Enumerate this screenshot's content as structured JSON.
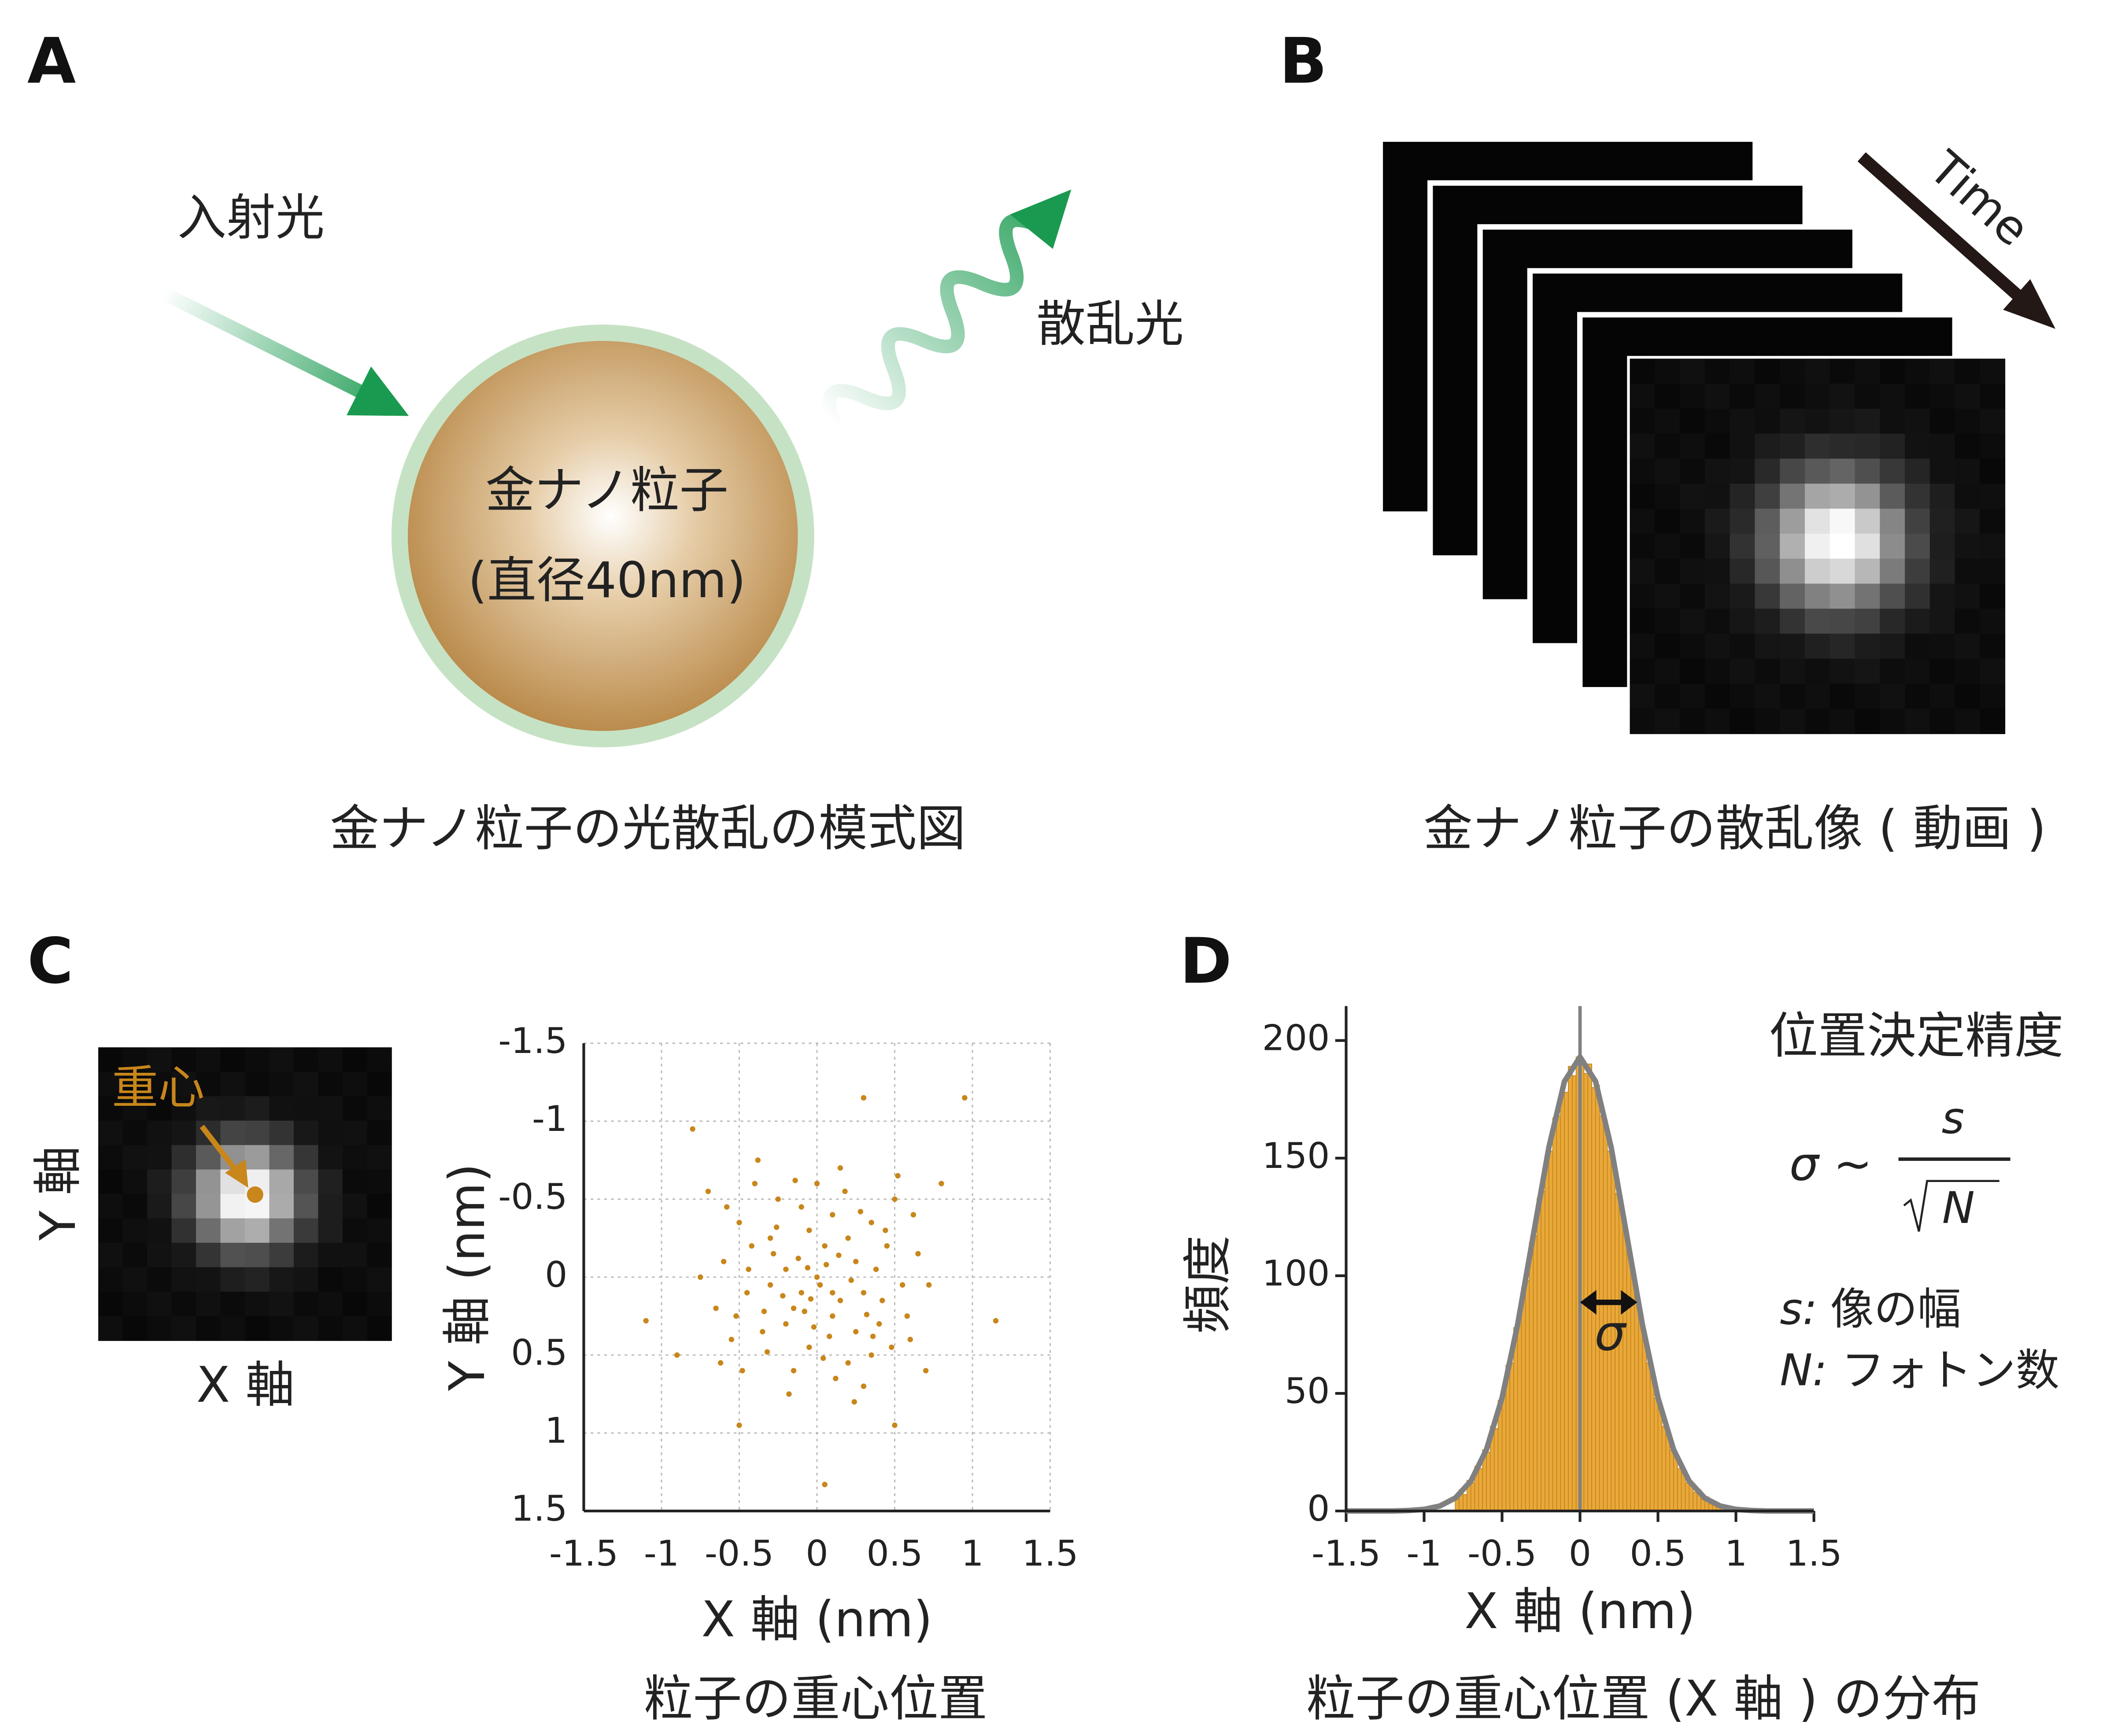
{
  "panels": {
    "A": {
      "label": "A",
      "incident": "入射光",
      "scattered": "散乱光",
      "particle": "金ナノ粒子",
      "diameter": "(直径40nm)",
      "caption": "金ナノ粒子の光散乱の模式図"
    },
    "B": {
      "label": "B",
      "time": "Time",
      "caption": "金ナノ粒子の散乱像 ( 動画 )"
    },
    "C": {
      "label": "C",
      "centroid": "重心",
      "y_axis": "Y 軸",
      "x_axis": "X 軸",
      "caption": "粒子の重心位置"
    },
    "D": {
      "label": "D",
      "precision": "位置決定精度",
      "formula_lhs": "σ ~",
      "formula_num": "s",
      "formula_den": "N",
      "s_key": "s:",
      "s_desc": "像の幅",
      "n_key": "N:",
      "n_desc": "フォトン数",
      "caption": "粒子の重心位置 (X 軸 ) の分布"
    }
  },
  "chart_data": [
    {
      "type": "scatter",
      "x_label": "X 軸 (nm)",
      "y_label": "Y 軸 (nm)",
      "color": "#c8861b",
      "grid": true,
      "xlim": [
        -1.5,
        1.5
      ],
      "ylim": [
        1.5,
        -1.5
      ],
      "xticks": [
        -1.5,
        -1,
        -0.5,
        0,
        0.5,
        1,
        1.5
      ],
      "yticks": [
        -1.5,
        -1,
        -0.5,
        0,
        0.5,
        1,
        1.5
      ],
      "x": [
        -0.8,
        0.3,
        0.95,
        1.15,
        -1.1,
        0.05,
        -0.5,
        0.5,
        -0.9,
        0.8,
        -0.7,
        0.7,
        0.02,
        -0.15,
        0.25,
        -0.3,
        0.4,
        0.1,
        -0.45,
        0.35,
        -0.05,
        0.55,
        -0.6,
        0.2,
        -0.25,
        0.05,
        -0.1,
        0.15,
        -0.2,
        0.3,
        -0.35,
        0.45,
        0.0,
        -0.5,
        0.6,
        -0.15,
        0.25,
        -0.4,
        0.1,
        -0.3,
        0.5,
        -0.05,
        0.2,
        -0.55,
        0.65,
        -0.2,
        0.35,
        -0.1,
        0.08,
        -0.65,
        0.42,
        -0.28,
        0.18,
        -0.08,
        0.28,
        -0.42,
        0.12,
        -0.48,
        0.58,
        0.0,
        -0.12,
        0.22,
        -0.32,
        0.38,
        -0.02,
        0.48,
        -0.58,
        0.15,
        -0.18,
        0.72,
        -0.75,
        0.3,
        -0.38,
        0.62,
        -0.22,
        0.06,
        -0.04,
        0.14,
        0.32,
        -0.26,
        0.44,
        -0.52,
        0.04,
        -0.14,
        0.24,
        -0.62,
        0.52,
        -0.34,
        0.36,
        -0.44,
        0.1,
        -0.06
      ],
      "values": [
        -0.95,
        -1.15,
        -1.15,
        0.28,
        0.28,
        1.33,
        0.95,
        0.95,
        0.5,
        -0.6,
        -0.55,
        0.6,
        0.05,
        0.2,
        -0.1,
        -0.25,
        0.3,
        -0.4,
        0.1,
        -0.35,
        0.45,
        0.05,
        -0.1,
        0.55,
        -0.5,
        -0.2,
        0.1,
        0.15,
        -0.05,
        0.1,
        0.35,
        -0.2,
        -0.6,
        -0.35,
        0.4,
        0.6,
        0.35,
        -0.6,
        0.25,
        0.05,
        -0.5,
        -0.3,
        -0.25,
        0.4,
        -0.15,
        0.3,
        0.5,
        -0.45,
        0.38,
        0.2,
        0.15,
        -0.15,
        -0.55,
        0.22,
        -0.42,
        -0.2,
        0.65,
        0.6,
        0.25,
        0.0,
        -0.12,
        0.02,
        0.48,
        -0.05,
        0.32,
        0.45,
        -0.45,
        -0.7,
        0.75,
        0.05,
        0.0,
        0.7,
        -0.75,
        -0.4,
        0.12,
        -0.08,
        0.14,
        -0.14,
        0.24,
        -0.32,
        -0.3,
        0.25,
        0.52,
        -0.62,
        0.8,
        0.55,
        -0.65,
        0.22,
        0.38,
        -0.05,
        0.1,
        -0.06
      ]
    },
    {
      "type": "histogram",
      "x_label": "X 軸 (nm)",
      "y_label": "頻度",
      "annotation": "σ",
      "color": "#e9a93a",
      "edge_color": "#c8861b",
      "xlim": [
        -1.5,
        1.5
      ],
      "ylim": [
        0,
        210
      ],
      "xticks": [
        -1.5,
        -1,
        -0.5,
        0,
        0.5,
        1,
        1.5
      ],
      "yticks": [
        0,
        50,
        100,
        150,
        200
      ],
      "vline": 0,
      "bins": [
        -0.8,
        -0.775,
        -0.75,
        -0.725,
        -0.7,
        -0.675,
        -0.65,
        -0.625,
        -0.6,
        -0.575,
        -0.55,
        -0.525,
        -0.5,
        -0.475,
        -0.45,
        -0.425,
        -0.4,
        -0.375,
        -0.35,
        -0.325,
        -0.3,
        -0.275,
        -0.25,
        -0.225,
        -0.2,
        -0.175,
        -0.15,
        -0.125,
        -0.1,
        -0.075,
        -0.05,
        -0.025,
        0,
        0.025,
        0.05,
        0.075,
        0.1,
        0.125,
        0.15,
        0.175,
        0.2,
        0.225,
        0.25,
        0.275,
        0.3,
        0.325,
        0.35,
        0.375,
        0.4,
        0.425,
        0.45,
        0.475,
        0.5,
        0.525,
        0.55,
        0.575,
        0.6,
        0.625,
        0.65,
        0.675,
        0.7,
        0.725,
        0.75,
        0.775,
        0.8,
        0.825,
        0.85,
        0.875,
        0.9,
        0.925
      ],
      "values": [
        5,
        9,
        7,
        13,
        12,
        19,
        18,
        26,
        25,
        36,
        35,
        47,
        49,
        62,
        63,
        78,
        80,
        95,
        98,
        114,
        117,
        133,
        136,
        150,
        153,
        167,
        168,
        180,
        178,
        189,
        185,
        193,
        192,
        186,
        190,
        180,
        181,
        168,
        166,
        153,
        150,
        135,
        132,
        118,
        113,
        99,
        94,
        80,
        76,
        63,
        60,
        48,
        46,
        36,
        35,
        26,
        25,
        18,
        18,
        12,
        12,
        8,
        9,
        5,
        6,
        3,
        4,
        2,
        2
      ],
      "curve": {
        "color": "#808080",
        "x": [
          -1.5,
          -1.4,
          -1.3,
          -1.2,
          -1.1,
          -1,
          -0.9,
          -0.8,
          -0.7,
          -0.6,
          -0.5,
          -0.4,
          -0.3,
          -0.2,
          -0.1,
          0,
          0.1,
          0.2,
          0.3,
          0.4,
          0.5,
          0.6,
          0.7,
          0.8,
          0.9,
          1,
          1.1,
          1.2,
          1.3,
          1.4,
          1.5
        ],
        "values": [
          0,
          0,
          0,
          0,
          0.2,
          0.7,
          2.1,
          5.5,
          12.7,
          26.1,
          48.1,
          79.3,
          117.1,
          154.5,
          182.6,
          193,
          182.6,
          154.5,
          117.1,
          79.3,
          48.1,
          26.1,
          12.7,
          5.5,
          2.1,
          0.7,
          0.2,
          0,
          0,
          0,
          0
        ]
      }
    }
  ]
}
